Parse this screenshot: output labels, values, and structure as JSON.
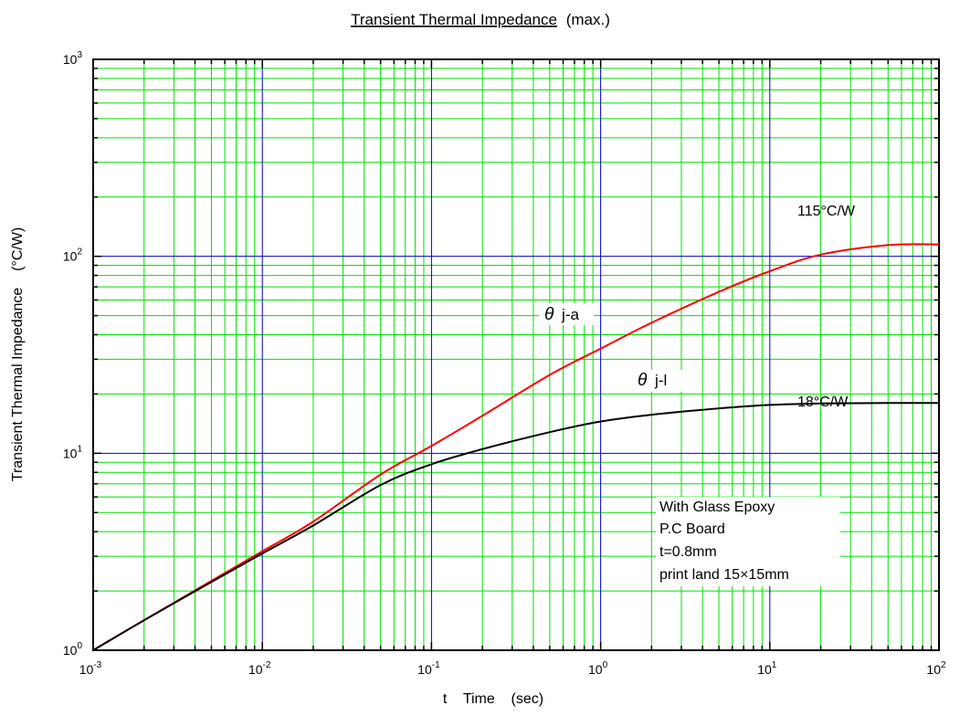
{
  "chart_data": {
    "type": "line",
    "title": "Transient Thermal Impedance",
    "title_suffix": "(max.)",
    "xlabel": "t    Time    (sec)",
    "ylabel": "Transient Thermal Impedance    (°C/W)",
    "x_scale": "log",
    "y_scale": "log",
    "xlim": [
      0.001,
      100
    ],
    "ylim": [
      1,
      1000
    ],
    "x_ticks": [
      {
        "base": "10",
        "exp": "-3",
        "value": 0.001
      },
      {
        "base": "10",
        "exp": "-2",
        "value": 0.01
      },
      {
        "base": "10",
        "exp": "-1",
        "value": 0.1
      },
      {
        "base": "10",
        "exp": "0",
        "value": 1
      },
      {
        "base": "10",
        "exp": "1",
        "value": 10
      },
      {
        "base": "10",
        "exp": "2",
        "value": 100
      }
    ],
    "y_ticks": [
      {
        "base": "10",
        "exp": "0",
        "value": 1
      },
      {
        "base": "10",
        "exp": "1",
        "value": 10
      },
      {
        "base": "10",
        "exp": "2",
        "value": 100
      },
      {
        "base": "10",
        "exp": "3",
        "value": 1000
      }
    ],
    "grid": true,
    "grid_minor_color": "#00e000",
    "grid_major_color": "#0000cc",
    "series": [
      {
        "name": "θ j-a",
        "color": "#ff0000",
        "x": [
          0.001,
          0.002,
          0.005,
          0.01,
          0.02,
          0.05,
          0.1,
          0.2,
          0.5,
          1,
          2,
          5,
          10,
          20,
          50,
          100
        ],
        "y": [
          1.0,
          1.42,
          2.25,
          3.18,
          4.5,
          7.8,
          10.9,
          15.5,
          25,
          34,
          46,
          66,
          84,
          102,
          114,
          115
        ]
      },
      {
        "name": "θ j-l",
        "color": "#000000",
        "x": [
          0.001,
          0.002,
          0.005,
          0.01,
          0.02,
          0.05,
          0.1,
          0.2,
          0.5,
          1,
          2,
          5,
          10,
          20,
          50,
          100
        ],
        "y": [
          1.0,
          1.42,
          2.22,
          3.1,
          4.3,
          6.9,
          8.8,
          10.5,
          12.8,
          14.5,
          15.7,
          16.9,
          17.6,
          17.9,
          18.0,
          18.0
        ]
      }
    ],
    "annotations": {
      "ja_value": "115°C/W",
      "jl_value": "18°C/W",
      "ja_label_symbol": "θ",
      "ja_label_text": "j-a",
      "jl_label_symbol": "θ",
      "jl_label_text": "j-l",
      "note_lines": [
        "With Glass Epoxy",
        "P.C Board",
        "t=0.8mm",
        "print land 15×15mm"
      ]
    }
  }
}
